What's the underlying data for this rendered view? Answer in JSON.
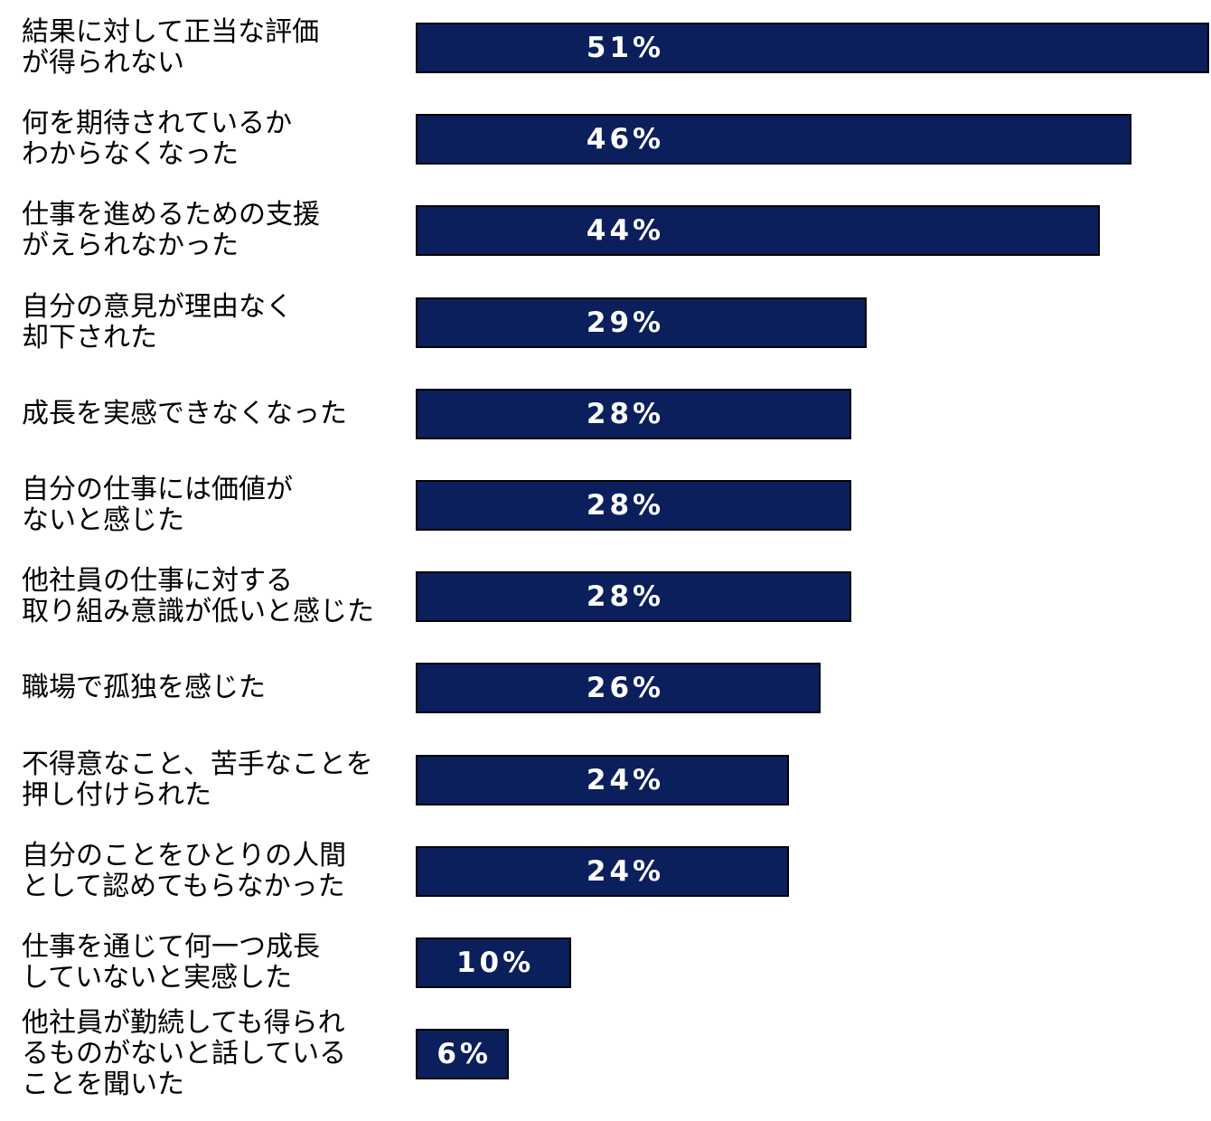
{
  "chart_data": {
    "type": "bar",
    "orientation": "horizontal",
    "categories": [
      "結果に対して正当な評価\nが得られない",
      "何を期待されているか\nわからなくなった",
      "仕事を進めるための支援\nがえられなかった",
      "自分の意見が理由なく\n却下された",
      "成長を実感できなくなった",
      "自分の仕事には価値が\nないと感じた",
      "他社員の仕事に対する\n取り組み意識が低いと感じた",
      "職場で孤独を感じた",
      "不得意なこと、苦手なことを\n押し付けられた",
      "自分のことをひとりの人間\nとして認めてもらなかった",
      "仕事を通じて何一つ成長\nしていないと実感した",
      "他社員が勤続しても得られ\nるものがないと話している\nことを聞いた"
    ],
    "values": [
      51,
      46,
      44,
      29,
      28,
      28,
      28,
      26,
      24,
      24,
      10,
      6
    ],
    "value_labels": [
      "51%",
      "46%",
      "44%",
      "29%",
      "28%",
      "28%",
      "28%",
      "26%",
      "24%",
      "24%",
      "10%",
      "6%"
    ],
    "title": "",
    "xlabel": "",
    "ylabel": "",
    "grid": false,
    "legend": "none",
    "bar_color": "#0b1f5c"
  }
}
